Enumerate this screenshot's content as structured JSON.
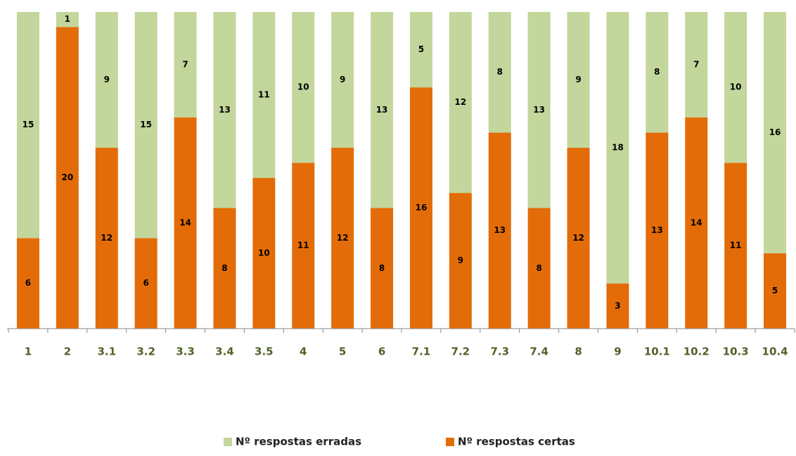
{
  "chart_data": {
    "type": "stacked_bar",
    "categories": [
      "1",
      "2",
      "3.1",
      "3.2",
      "3.3",
      "3.4",
      "3.5",
      "4",
      "5",
      "6",
      "7.1",
      "7.2",
      "7.3",
      "7.4",
      "8",
      "9",
      "10.1",
      "10.2",
      "10.3",
      "10.4"
    ],
    "series": [
      {
        "name": "Nº respostas erradas",
        "color": "#c3d69b",
        "values": [
          15,
          1,
          9,
          15,
          7,
          13,
          11,
          10,
          9,
          13,
          5,
          12,
          8,
          13,
          9,
          18,
          8,
          7,
          10,
          16
        ]
      },
      {
        "name": "Nº respostas certas",
        "color": "#e36c09",
        "values": [
          6,
          20,
          12,
          6,
          14,
          8,
          10,
          11,
          12,
          8,
          16,
          9,
          13,
          8,
          12,
          3,
          13,
          14,
          11,
          5
        ]
      }
    ],
    "ylim": [
      0,
      21
    ],
    "legend": "bottom"
  }
}
